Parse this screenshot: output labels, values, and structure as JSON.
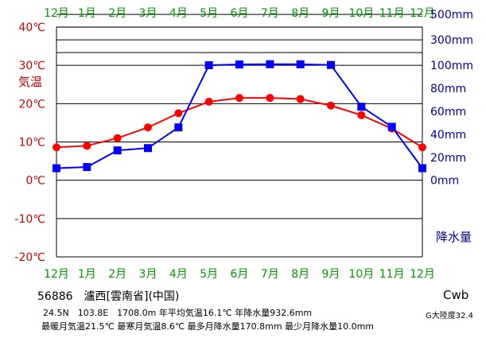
{
  "chart_data": {
    "type": "line",
    "months_top": [
      "12月",
      "1月",
      "2月",
      "3月",
      "4月",
      "5月",
      "6月",
      "7月",
      "8月",
      "9月",
      "10月",
      "11月",
      "12月"
    ],
    "months_bottom": [
      "12月",
      "1月",
      "2月",
      "3月",
      "4月",
      "5月",
      "6月",
      "7月",
      "8月",
      "9月",
      "10月",
      "11月",
      "12月"
    ],
    "temp_label": "気温",
    "precip_label": "降水量",
    "temp_ticks": [
      "40℃",
      "30℃",
      "20℃",
      "10℃",
      "0℃",
      "-10℃",
      "-20℃"
    ],
    "temp_tick_values": [
      40,
      30,
      20,
      10,
      0,
      -10,
      -20
    ],
    "precip_ticks": [
      "500mm",
      "300mm",
      "100mm",
      "80mm",
      "60mm",
      "40mm",
      "20mm",
      "0mm"
    ],
    "precip_tick_values": [
      500,
      300,
      100,
      80,
      60,
      40,
      20,
      0
    ],
    "ylim_temp": [
      -20,
      40
    ],
    "series": [
      {
        "name": "気温",
        "color": "#ff0000",
        "marker": "circle",
        "values": [
          8.6,
          9.0,
          11.0,
          13.8,
          17.5,
          20.5,
          21.5,
          21.5,
          21.2,
          19.5,
          17.0,
          13.5,
          8.6
        ]
      },
      {
        "name": "降水量",
        "color": "#0000ff",
        "marker": "square",
        "values": [
          10.5,
          11.5,
          26.0,
          28.0,
          46.0,
          101.0,
          107.0,
          109.0,
          108.5,
          103.0,
          64.0,
          46.5,
          10.5
        ]
      }
    ],
    "grid": true
  },
  "station": {
    "title": "56886　瀘西[雲南省](中国)",
    "summary_1": "24.5N　103.8E　1708.0m 年平均気温16.1℃ 年降水量932.6mm",
    "summary_2": "最暖月気温21.5℃ 最寒月気温8.6℃ 最多月降水量170.8mm 最少月降水量10.0mm",
    "climate_code": "Cwb",
    "continentality": "G大陸度32.4"
  },
  "colors": {
    "month_label": "#009900",
    "temp_axis": "#cc0000",
    "temp_line": "#ff0000",
    "precip_axis": "#000099",
    "precip_line": "#0000ff",
    "grid": "#000000"
  }
}
